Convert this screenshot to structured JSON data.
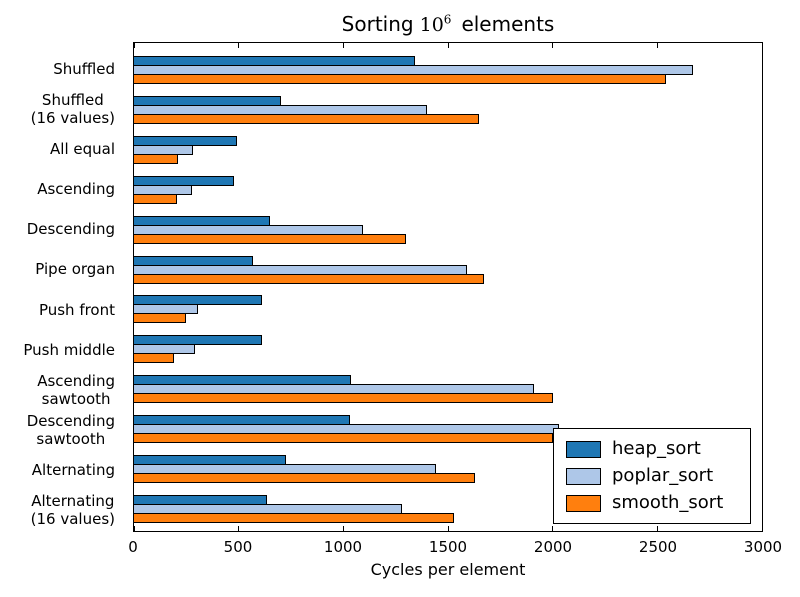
{
  "figure": {
    "background": "#ffffff",
    "axis_color": "#000000"
  },
  "chart_data": {
    "type": "bar",
    "orientation": "horizontal",
    "title": "Sorting 10^6 elements",
    "title_parts": {
      "prefix": "Sorting",
      "base": "10",
      "exponent": "6",
      "suffix": "elements"
    },
    "xlabel": "Cycles per element",
    "xlim": [
      0,
      3000
    ],
    "xticks": [
      0,
      500,
      1000,
      1500,
      2000,
      2500,
      3000
    ],
    "grid": false,
    "bar_edge_color": "#000000",
    "categories": [
      [
        "Shuffled"
      ],
      [
        "Shuffled",
        "(16 values)"
      ],
      [
        "All equal"
      ],
      [
        "Ascending"
      ],
      [
        "Descending"
      ],
      [
        "Pipe organ"
      ],
      [
        "Push front"
      ],
      [
        "Push middle"
      ],
      [
        "Ascending",
        "sawtooth"
      ],
      [
        "Descending",
        "sawtooth"
      ],
      [
        "Alternating"
      ],
      [
        "Alternating",
        "(16 values)"
      ]
    ],
    "series": [
      {
        "name": "heap_sort",
        "color": "#1f77b4",
        "values": [
          1340,
          700,
          490,
          480,
          650,
          570,
          610,
          610,
          1035,
          1030,
          725,
          635
        ]
      },
      {
        "name": "poplar_sort",
        "color": "#aec7e8",
        "values": [
          2670,
          1400,
          280,
          275,
          1095,
          1590,
          305,
          290,
          1910,
          2030,
          1445,
          1280
        ]
      },
      {
        "name": "smooth_sort",
        "color": "#ff7f0e",
        "values": [
          2540,
          1650,
          210,
          205,
          1300,
          1670,
          250,
          190,
          2000,
          2000,
          1630,
          1530
        ]
      }
    ],
    "legend": {
      "position": "lower right",
      "entries": [
        "heap_sort",
        "poplar_sort",
        "smooth_sort"
      ]
    }
  }
}
